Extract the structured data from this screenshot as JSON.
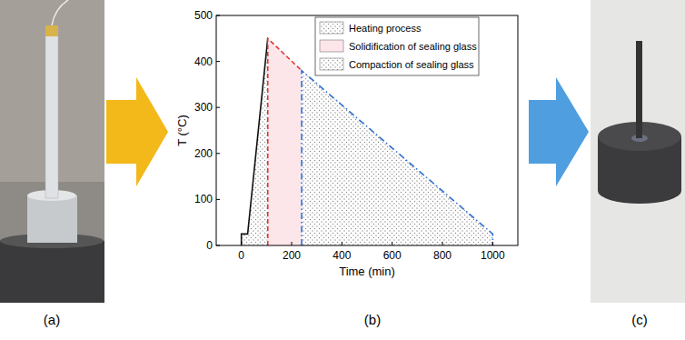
{
  "chart_data": {
    "type": "area",
    "x_label": "Time (min)",
    "y_label": "T (°C)",
    "xlim": [
      -100,
      1100
    ],
    "xticks": [
      0,
      200,
      400,
      600,
      800,
      1000
    ],
    "ylim": [
      0,
      500
    ],
    "yticks": [
      0,
      100,
      200,
      300,
      400,
      500
    ],
    "grid": false,
    "legend": "top",
    "series": [
      {
        "name": "Heating process",
        "color": "#111111",
        "line_style": "solid",
        "x": [
          0,
          0,
          25,
          105
        ],
        "values": [
          0,
          25,
          25,
          450
        ]
      },
      {
        "name": "Solidification of sealing glass",
        "color": "#e0302f",
        "line_style": "dashed",
        "x": [
          105,
          105,
          240
        ],
        "values": [
          0,
          450,
          380
        ]
      },
      {
        "name": "Compaction of sealing glass",
        "color": "#2f6fd0",
        "line_style": "dashdot",
        "x": [
          240,
          240,
          1000,
          1000
        ],
        "values": [
          0,
          380,
          25,
          0
        ]
      }
    ]
  },
  "panel_labels": [
    "(a)",
    "(b)",
    "(c)"
  ]
}
